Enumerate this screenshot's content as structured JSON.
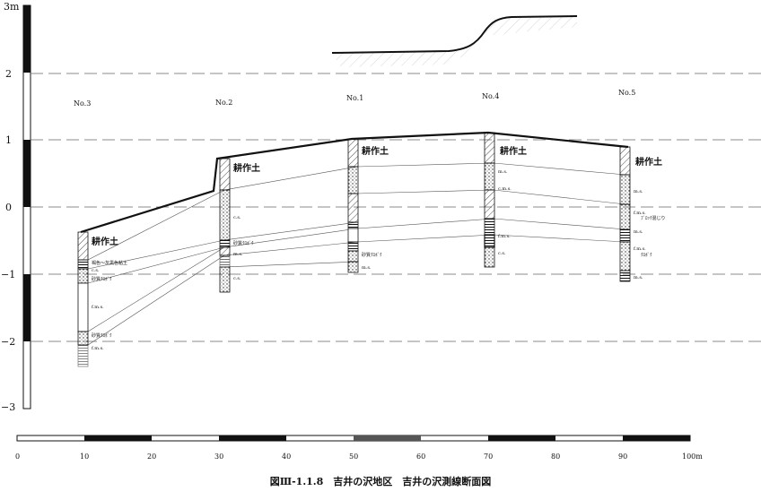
{
  "y_axis": {
    "labels": [
      "3m",
      "2",
      "1",
      "0",
      "−1",
      "−2",
      "−3"
    ]
  },
  "x_axis": {
    "labels": [
      "0",
      "10",
      "20",
      "30",
      "40",
      "50",
      "60",
      "70",
      "80",
      "90",
      "100m"
    ]
  },
  "boreholes": [
    "No.3",
    "No.2",
    "No.1",
    "No.4",
    "No.5"
  ],
  "soil": {
    "surface_label": "耕作土",
    "labels": [
      "褐色～灰黒色粘土",
      "砂質ｸﾛﾎﾞｸ",
      "f.m.s.",
      "c.s.",
      "m.s.",
      "c.m.s.",
      "ﾌﾞﾛｯｸ混じり",
      "ｸﾛﾎﾞｸ"
    ]
  },
  "caption": "図Ⅲ-1.1.8　吉井の沢地区　吉井の沢測線断面図"
}
